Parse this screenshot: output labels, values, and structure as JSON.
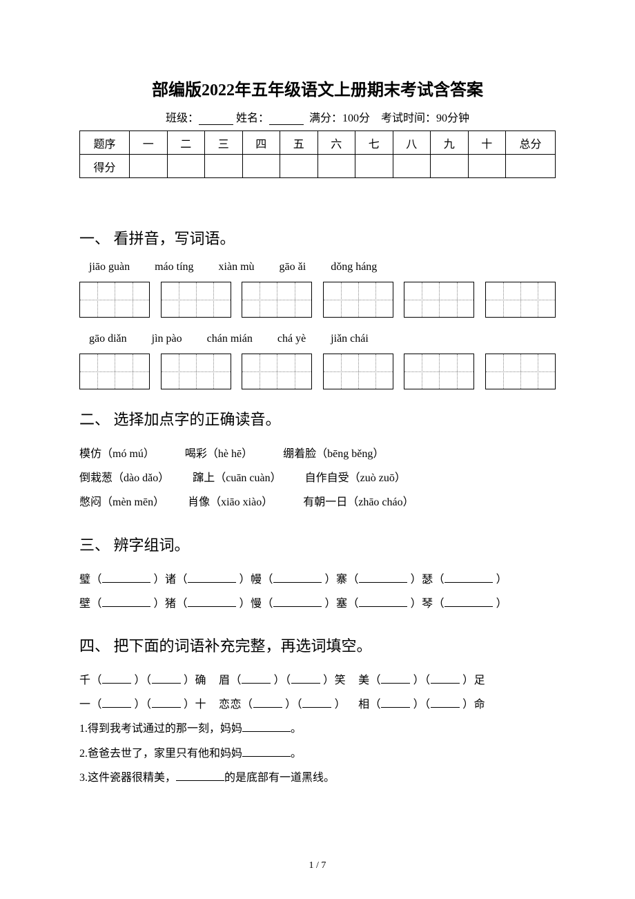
{
  "title": "部编版2022年五年级语文上册期末考试含答案",
  "meta": {
    "class_label": "班级：",
    "name_label": "姓名：",
    "full_score": "满分：100分",
    "time": "考试时间：90分钟"
  },
  "score_table": {
    "row1": [
      "题序",
      "一",
      "二",
      "三",
      "四",
      "五",
      "六",
      "七",
      "八",
      "九",
      "十",
      "总分"
    ],
    "row2_label": "得分"
  },
  "q1": {
    "heading": "一、 看拼音，写词语。",
    "pinyin_row1": [
      "jiāo guàn",
      "máo tíng",
      "xiàn mù",
      "gāo ǎi",
      "dǒng háng"
    ],
    "pinyin_row2": [
      "gāo diǎn",
      "jìn pào",
      "chán mián",
      "chá yè",
      "jiǎn chái"
    ]
  },
  "q2": {
    "heading": "二、 选择加点字的正确读音。",
    "lines": [
      [
        "模仿（mó mú）",
        "喝彩（hè hē）",
        "绷着脸（bēng běng）"
      ],
      [
        "倒栽葱（dào dǎo）",
        "蹿上（cuān cuàn）",
        "自作自受（zuò zuō）"
      ],
      [
        "憋闷（mèn mēn）",
        "肖像（xiāo xiào）",
        "有朝一日（zhāo cháo）"
      ]
    ]
  },
  "q3": {
    "heading": "三、 辨字组词。",
    "row1": [
      "璧（",
      "）诸（",
      "）幔（",
      "）寨（",
      "）瑟（",
      "）"
    ],
    "row2": [
      "壁（",
      "）猪（",
      "）慢（",
      "）塞（",
      "）琴（",
      "）"
    ]
  },
  "q4": {
    "heading": "四、 把下面的词语补充完整，再选词填空。",
    "row1_parts": [
      "千（",
      "）（",
      "）确",
      "眉（",
      "）（",
      "）笑",
      "美（",
      "）（",
      "）足"
    ],
    "row2_parts": [
      "一（",
      "）（",
      "）十",
      "恋恋（",
      "）（",
      "）",
      "相（",
      "）（",
      "）命"
    ],
    "s1a": "1.得到我考试通过的那一刻，妈妈",
    "s1b": "。",
    "s2a": "2.爸爸去世了，家里只有他和妈妈",
    "s2b": "。",
    "s3a": "3.这件瓷器很精美，",
    "s3b": "的是底部有一道黑线。"
  },
  "page": "1 / 7"
}
